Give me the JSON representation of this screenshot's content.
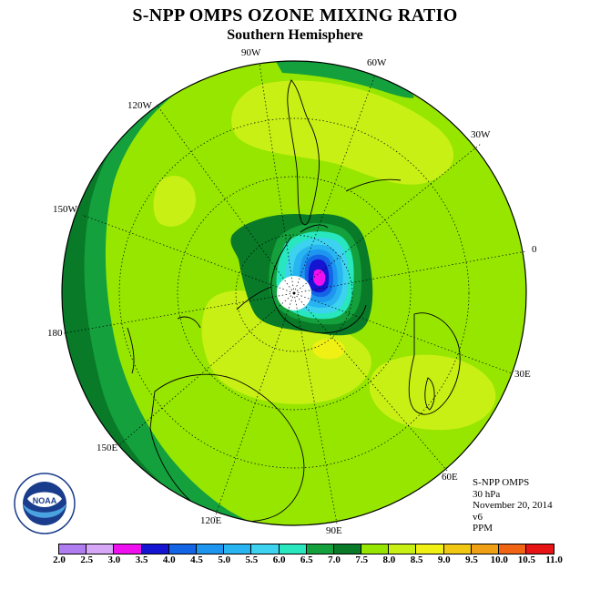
{
  "title": "S-NPP OMPS OZONE MIXING RATIO",
  "subtitle": "Southern Hemisphere",
  "longitude_labels": [
    {
      "id": "lon-90w",
      "text": "90W"
    },
    {
      "id": "lon-60w",
      "text": "60W"
    },
    {
      "id": "lon-120w",
      "text": "120W"
    },
    {
      "id": "lon-30w",
      "text": "30W"
    },
    {
      "id": "lon-150w",
      "text": "150W"
    },
    {
      "id": "lon-0",
      "text": "0"
    },
    {
      "id": "lon-180",
      "text": "180"
    },
    {
      "id": "lon-30e",
      "text": "30E"
    },
    {
      "id": "lon-150e",
      "text": "150E"
    },
    {
      "id": "lon-60e",
      "text": "60E"
    },
    {
      "id": "lon-120e",
      "text": "120E"
    },
    {
      "id": "lon-90e",
      "text": "90E"
    }
  ],
  "info": {
    "instrument": "S-NPP OMPS",
    "level": "30 hPa",
    "date": "November 20, 2014",
    "version": "v6",
    "units": "PPM"
  },
  "logo": {
    "text": "NOAA",
    "icon": "noaa-logo-icon"
  },
  "colorbar": {
    "ticks": [
      "2.0",
      "2.5",
      "3.0",
      "3.5",
      "4.0",
      "4.5",
      "5.0",
      "5.5",
      "6.0",
      "6.5",
      "7.0",
      "7.5",
      "8.0",
      "8.5",
      "9.0",
      "9.5",
      "10.0",
      "10.5",
      "11.0"
    ],
    "colors": [
      "#b07df0",
      "#d8a8f8",
      "#ee10ee",
      "#1414d2",
      "#1464e6",
      "#1e96f0",
      "#28b4f0",
      "#3cd2f0",
      "#28e6be",
      "#14a03c",
      "#087a28",
      "#96e600",
      "#c8f014",
      "#f0f014",
      "#f0c814",
      "#f0a014",
      "#f06414",
      "#e61414",
      "#8c5a3c"
    ]
  }
}
